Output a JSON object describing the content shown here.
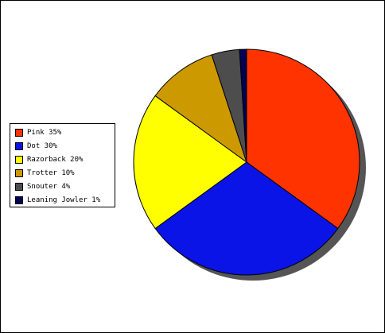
{
  "chart_data": {
    "type": "pie",
    "title": "",
    "legend_position": "left",
    "categories": [
      "Pink",
      "Dot",
      "Razorback",
      "Trotter",
      "Snouter",
      "Leaning Jowler"
    ],
    "values": [
      35,
      30,
      20,
      10,
      4,
      1
    ],
    "colors": [
      "#ff3300",
      "#0a14e6",
      "#ffff00",
      "#cc9900",
      "#4d4d4d",
      "#000055"
    ],
    "legend": [
      {
        "label": "Pink 35%",
        "color": "#ff3300"
      },
      {
        "label": "Dot 30%",
        "color": "#0a14e6"
      },
      {
        "label": "Razorback 20%",
        "color": "#ffff00"
      },
      {
        "label": "Trotter 10%",
        "color": "#cc9900"
      },
      {
        "label": "Snouter 4%",
        "color": "#4d4d4d"
      },
      {
        "label": "Leaning Jowler 1%",
        "color": "#000055"
      }
    ],
    "shadow_color": "#555555"
  }
}
